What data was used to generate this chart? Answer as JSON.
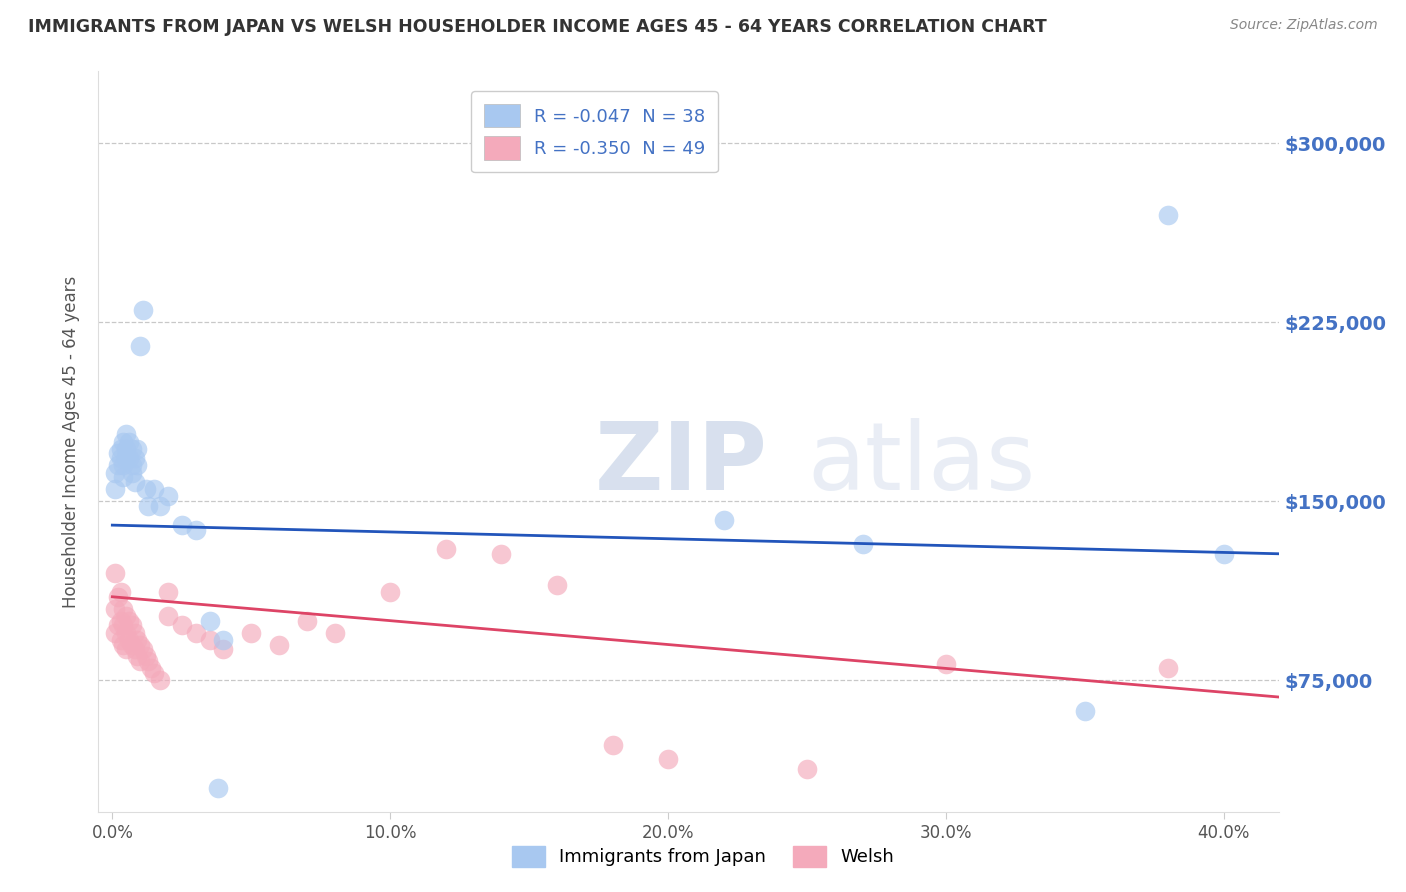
{
  "title": "IMMIGRANTS FROM JAPAN VS WELSH HOUSEHOLDER INCOME AGES 45 - 64 YEARS CORRELATION CHART",
  "source": "Source: ZipAtlas.com",
  "xlabel_ticks": [
    "0.0%",
    "10.0%",
    "20.0%",
    "30.0%",
    "40.0%"
  ],
  "xlabel_tick_vals": [
    0.0,
    0.1,
    0.2,
    0.3,
    0.4
  ],
  "ylabel": "Householder Income Ages 45 - 64 years",
  "ylabel_ticks": [
    "$75,000",
    "$150,000",
    "$225,000",
    "$300,000"
  ],
  "ylabel_tick_vals": [
    75000,
    150000,
    225000,
    300000
  ],
  "xlim": [
    -0.005,
    0.42
  ],
  "ylim": [
    20000,
    330000
  ],
  "background_color": "#ffffff",
  "grid_color": "#c8c8c8",
  "right_axis_color": "#4472c4",
  "legend": {
    "japan_label": "Immigrants from Japan",
    "welsh_label": "Welsh",
    "japan_R": "-0.047",
    "japan_N": "38",
    "welsh_R": "-0.350",
    "welsh_N": "49"
  },
  "japan_color": "#a8c8f0",
  "welsh_color": "#f4aabb",
  "japan_line_color": "#2255bb",
  "welsh_line_color": "#dd4466",
  "watermark_color": "#d0d8e8",
  "japan_scatter": [
    [
      0.001,
      162000
    ],
    [
      0.001,
      155000
    ],
    [
      0.002,
      170000
    ],
    [
      0.002,
      165000
    ],
    [
      0.003,
      172000
    ],
    [
      0.003,
      168000
    ],
    [
      0.004,
      175000
    ],
    [
      0.004,
      165000
    ],
    [
      0.004,
      160000
    ],
    [
      0.005,
      178000
    ],
    [
      0.005,
      172000
    ],
    [
      0.005,
      168000
    ],
    [
      0.006,
      175000
    ],
    [
      0.006,
      168000
    ],
    [
      0.007,
      172000
    ],
    [
      0.007,
      165000
    ],
    [
      0.007,
      162000
    ],
    [
      0.008,
      168000
    ],
    [
      0.008,
      158000
    ],
    [
      0.009,
      165000
    ],
    [
      0.009,
      172000
    ],
    [
      0.01,
      215000
    ],
    [
      0.011,
      230000
    ],
    [
      0.012,
      155000
    ],
    [
      0.013,
      148000
    ],
    [
      0.015,
      155000
    ],
    [
      0.017,
      148000
    ],
    [
      0.02,
      152000
    ],
    [
      0.025,
      140000
    ],
    [
      0.03,
      138000
    ],
    [
      0.035,
      100000
    ],
    [
      0.04,
      92000
    ],
    [
      0.038,
      30000
    ],
    [
      0.22,
      142000
    ],
    [
      0.27,
      132000
    ],
    [
      0.35,
      62000
    ],
    [
      0.38,
      270000
    ],
    [
      0.4,
      128000
    ]
  ],
  "welsh_scatter": [
    [
      0.001,
      120000
    ],
    [
      0.001,
      105000
    ],
    [
      0.001,
      95000
    ],
    [
      0.002,
      110000
    ],
    [
      0.002,
      98000
    ],
    [
      0.003,
      112000
    ],
    [
      0.003,
      100000
    ],
    [
      0.003,
      92000
    ],
    [
      0.004,
      105000
    ],
    [
      0.004,
      98000
    ],
    [
      0.004,
      90000
    ],
    [
      0.005,
      102000
    ],
    [
      0.005,
      95000
    ],
    [
      0.005,
      88000
    ],
    [
      0.006,
      100000
    ],
    [
      0.006,
      92000
    ],
    [
      0.007,
      98000
    ],
    [
      0.007,
      90000
    ],
    [
      0.008,
      95000
    ],
    [
      0.008,
      88000
    ],
    [
      0.009,
      92000
    ],
    [
      0.009,
      85000
    ],
    [
      0.01,
      90000
    ],
    [
      0.01,
      83000
    ],
    [
      0.011,
      88000
    ],
    [
      0.012,
      85000
    ],
    [
      0.013,
      83000
    ],
    [
      0.014,
      80000
    ],
    [
      0.015,
      78000
    ],
    [
      0.017,
      75000
    ],
    [
      0.02,
      112000
    ],
    [
      0.02,
      102000
    ],
    [
      0.025,
      98000
    ],
    [
      0.03,
      95000
    ],
    [
      0.035,
      92000
    ],
    [
      0.04,
      88000
    ],
    [
      0.05,
      95000
    ],
    [
      0.06,
      90000
    ],
    [
      0.07,
      100000
    ],
    [
      0.08,
      95000
    ],
    [
      0.1,
      112000
    ],
    [
      0.12,
      130000
    ],
    [
      0.14,
      128000
    ],
    [
      0.16,
      115000
    ],
    [
      0.18,
      48000
    ],
    [
      0.2,
      42000
    ],
    [
      0.25,
      38000
    ],
    [
      0.3,
      82000
    ],
    [
      0.38,
      80000
    ]
  ]
}
